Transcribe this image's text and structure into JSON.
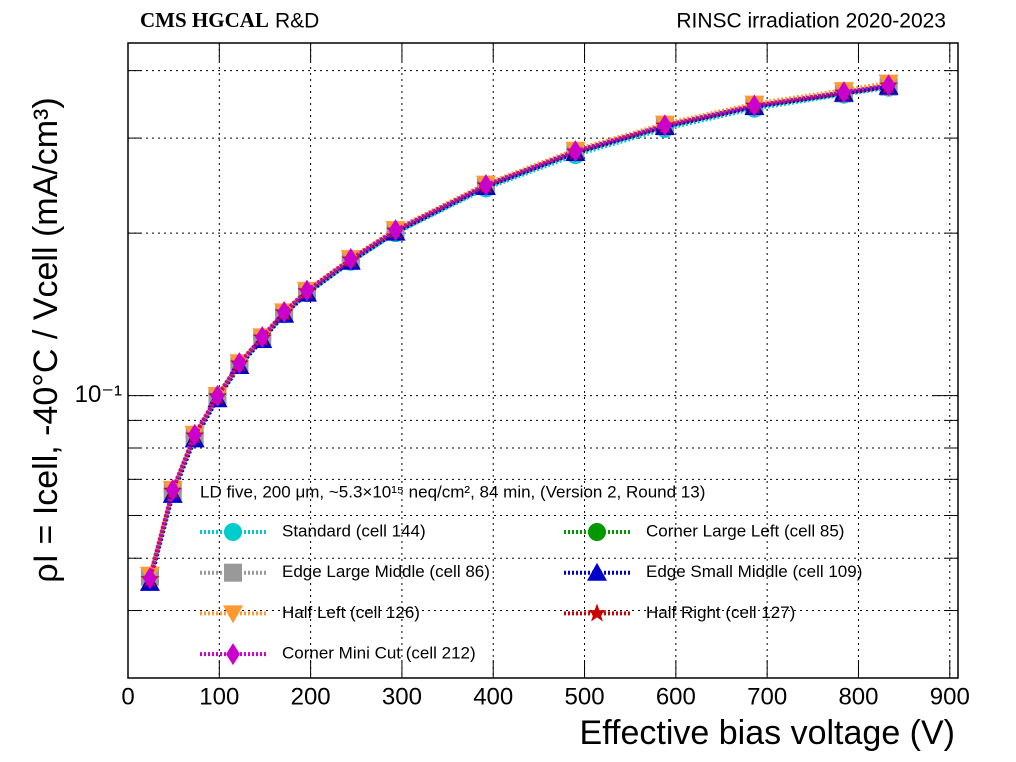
{
  "chart_data": {
    "type": "line",
    "label_bold": "CMS HGCAL",
    "label": "R&D",
    "title_right": "RINSC irradiation 2020-2023",
    "xlabel": "Effective bias voltage (V)",
    "ylabel": "ρI = Icell, -40°C / Vcell (mA/cm³)",
    "legend_title": "LD five, 200 μm, ~5.3×10¹⁵ neq/cm², 84 min, (Version 2, Round 13)",
    "xlim": [
      0,
      909
    ],
    "xticks": [
      0,
      100,
      200,
      300,
      400,
      500,
      600,
      700,
      800,
      900
    ],
    "ylim": [
      0.03,
      0.45
    ],
    "log_y": true,
    "yticks": [
      {
        "value": 0.1,
        "label": "10⁻¹"
      }
    ],
    "yminor": [
      0.04,
      0.05,
      0.06,
      0.07,
      0.08,
      0.09,
      0.2,
      0.3,
      0.4
    ],
    "grid": true,
    "x": [
      24,
      49,
      73,
      98,
      122,
      147,
      171,
      196,
      244,
      293,
      392,
      490,
      588,
      686,
      784,
      833
    ],
    "series": [
      {
        "name": "Standard (cell 144)",
        "color": "#00cccc",
        "marker": "circle",
        "values": [
          0.0455,
          0.0662,
          0.0838,
          0.099,
          0.114,
          0.1272,
          0.1415,
          0.1548,
          0.177,
          0.2,
          0.242,
          0.279,
          0.312,
          0.34,
          0.361,
          0.372
        ]
      },
      {
        "name": "Corner Large Left (cell 85)",
        "color": "#009900",
        "marker": "circle",
        "values": [
          0.046,
          0.0668,
          0.0845,
          0.0998,
          0.1148,
          0.1282,
          0.1427,
          0.1562,
          0.1788,
          0.2022,
          0.2452,
          0.2832,
          0.3162,
          0.3442,
          0.3642,
          0.3752
        ]
      },
      {
        "name": "Edge Large Middle (cell 86)",
        "color": "#999999",
        "marker": "square",
        "values": [
          0.0462,
          0.0665,
          0.084,
          0.0995,
          0.1145,
          0.1278,
          0.1422,
          0.1556,
          0.1782,
          0.2015,
          0.2445,
          0.2825,
          0.3155,
          0.3435,
          0.363,
          0.3735
        ]
      },
      {
        "name": "Edge Small Middle (cell 109)",
        "color": "#0000cc",
        "marker": "triangle-up",
        "values": [
          0.045,
          0.0655,
          0.083,
          0.0985,
          0.1135,
          0.1268,
          0.1412,
          0.1545,
          0.177,
          0.2005,
          0.2435,
          0.2815,
          0.3145,
          0.3425,
          0.3625,
          0.3735
        ]
      },
      {
        "name": "Half Left (cell 126)",
        "color": "#ff9933",
        "marker": "triangle-down",
        "values": [
          0.0466,
          0.0672,
          0.085,
          0.1003,
          0.1153,
          0.1288,
          0.1433,
          0.157,
          0.1798,
          0.2035,
          0.247,
          0.2855,
          0.319,
          0.3475,
          0.368,
          0.38
        ]
      },
      {
        "name": "Half Right (cell 127)",
        "color": "#cc0000",
        "marker": "star",
        "values": [
          0.0457,
          0.0666,
          0.0843,
          0.0996,
          0.1146,
          0.128,
          0.1425,
          0.156,
          0.1786,
          0.202,
          0.245,
          0.283,
          0.316,
          0.344,
          0.364,
          0.375
        ]
      },
      {
        "name": "Corner Mini Cut (cell 212)",
        "color": "#cc00cc",
        "marker": "diamond",
        "values": [
          0.0459,
          0.0669,
          0.0846,
          0.0999,
          0.1149,
          0.1284,
          0.1429,
          0.1565,
          0.1791,
          0.2026,
          0.2456,
          0.2838,
          0.3168,
          0.3448,
          0.3648,
          0.3758
        ]
      }
    ]
  }
}
